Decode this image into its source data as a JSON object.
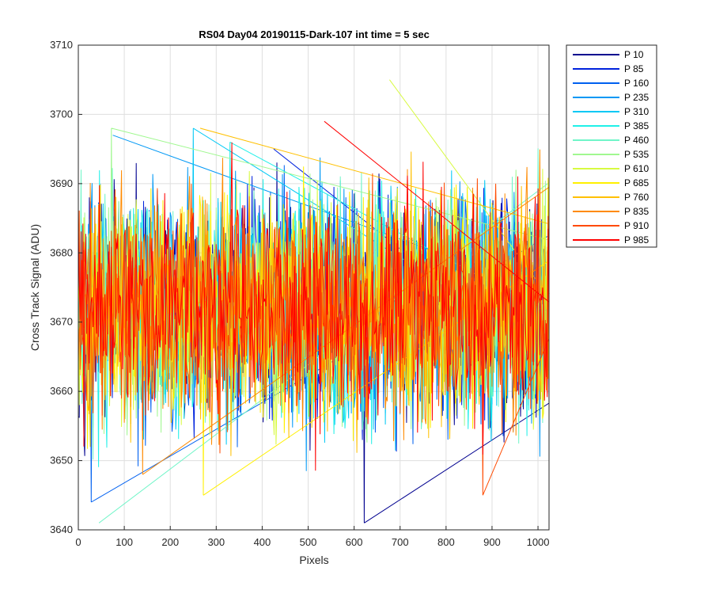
{
  "chart_data": {
    "type": "line",
    "title": "RS04 Day04 20190115-Dark-107 int time = 5 sec",
    "xlabel": "Pixels",
    "ylabel": "Cross Track Signal (ADU)",
    "xlim": [
      0,
      1024
    ],
    "ylim": [
      3640,
      3710
    ],
    "xticks": [
      0,
      100,
      200,
      300,
      400,
      500,
      600,
      700,
      800,
      900,
      1000
    ],
    "yticks": [
      3640,
      3650,
      3660,
      3670,
      3680,
      3690,
      3700,
      3710
    ],
    "grid": true,
    "legend_position": "outside-right",
    "series": [
      {
        "name": "P 10",
        "color": "#00008F",
        "mean": 3672,
        "spread": 8,
        "peak": {
          "x": 622,
          "y": 3641
        }
      },
      {
        "name": "P 85",
        "color": "#0022DD",
        "mean": 3672,
        "spread": 8,
        "peak": {
          "x": 425,
          "y": 3695
        }
      },
      {
        "name": "P 160",
        "color": "#0060F0",
        "mean": 3672,
        "spread": 8,
        "peak": {
          "x": 28,
          "y": 3644
        }
      },
      {
        "name": "P 235",
        "color": "#0098F5",
        "mean": 3672,
        "spread": 8,
        "peak": {
          "x": 75,
          "y": 3697
        }
      },
      {
        "name": "P 310",
        "color": "#00C8F5",
        "mean": 3672,
        "spread": 8,
        "peak": {
          "x": 250,
          "y": 3698
        }
      },
      {
        "name": "P 385",
        "color": "#20F0E8",
        "mean": 3672,
        "spread": 8,
        "peak": {
          "x": 330,
          "y": 3696
        }
      },
      {
        "name": "P 460",
        "color": "#70F5C8",
        "mean": 3672,
        "spread": 8,
        "peak": {
          "x": 45,
          "y": 3641
        }
      },
      {
        "name": "P 535",
        "color": "#A0F890",
        "mean": 3672,
        "spread": 8,
        "peak": {
          "x": 72,
          "y": 3698
        }
      },
      {
        "name": "P 610",
        "color": "#D8FA40",
        "mean": 3672,
        "spread": 8,
        "peak": {
          "x": 677,
          "y": 3705
        }
      },
      {
        "name": "P 685",
        "color": "#FFF000",
        "mean": 3672,
        "spread": 8,
        "peak": {
          "x": 272,
          "y": 3645
        }
      },
      {
        "name": "P 760",
        "color": "#FFC000",
        "mean": 3672,
        "spread": 8,
        "peak": {
          "x": 265,
          "y": 3698
        }
      },
      {
        "name": "P 835",
        "color": "#FF8A00",
        "mean": 3672,
        "spread": 8,
        "peak": {
          "x": 140,
          "y": 3648
        }
      },
      {
        "name": "P 910",
        "color": "#FF4A00",
        "mean": 3672,
        "spread": 8,
        "peak": {
          "x": 880,
          "y": 3645
        }
      },
      {
        "name": "P 985",
        "color": "#FF0000",
        "mean": 3672,
        "spread": 8,
        "peak": {
          "x": 535,
          "y": 3699
        }
      }
    ]
  }
}
